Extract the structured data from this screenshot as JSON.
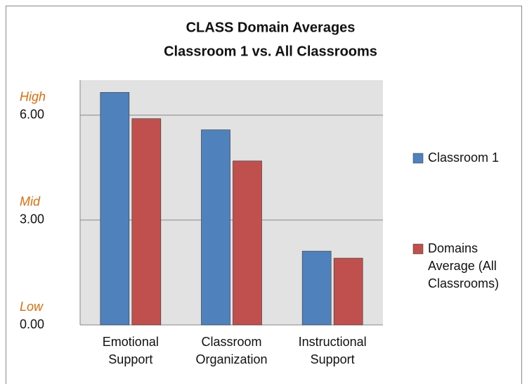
{
  "chart_data": {
    "type": "bar",
    "title": [
      "CLASS Domain Averages",
      "Classroom 1  vs. All Classrooms"
    ],
    "categories": [
      "Emotional Support",
      "Classroom Organization",
      "Instructional Support"
    ],
    "series": [
      {
        "name": "Classroom 1",
        "color": "#4f81bd",
        "values": [
          6.65,
          5.58,
          2.11
        ]
      },
      {
        "name": "Domains Average (All Classrooms)",
        "color": "#c0504d",
        "values": [
          5.9,
          4.69,
          1.91
        ]
      }
    ],
    "ylim": [
      0,
      7
    ],
    "yticks": [
      {
        "value": 6,
        "label": "6.00",
        "level": "High"
      },
      {
        "value": 3,
        "label": "3.00",
        "level": "Mid"
      },
      {
        "value": 0,
        "label": "0.00",
        "level": "Low"
      }
    ],
    "grid": true,
    "legend": "right"
  }
}
